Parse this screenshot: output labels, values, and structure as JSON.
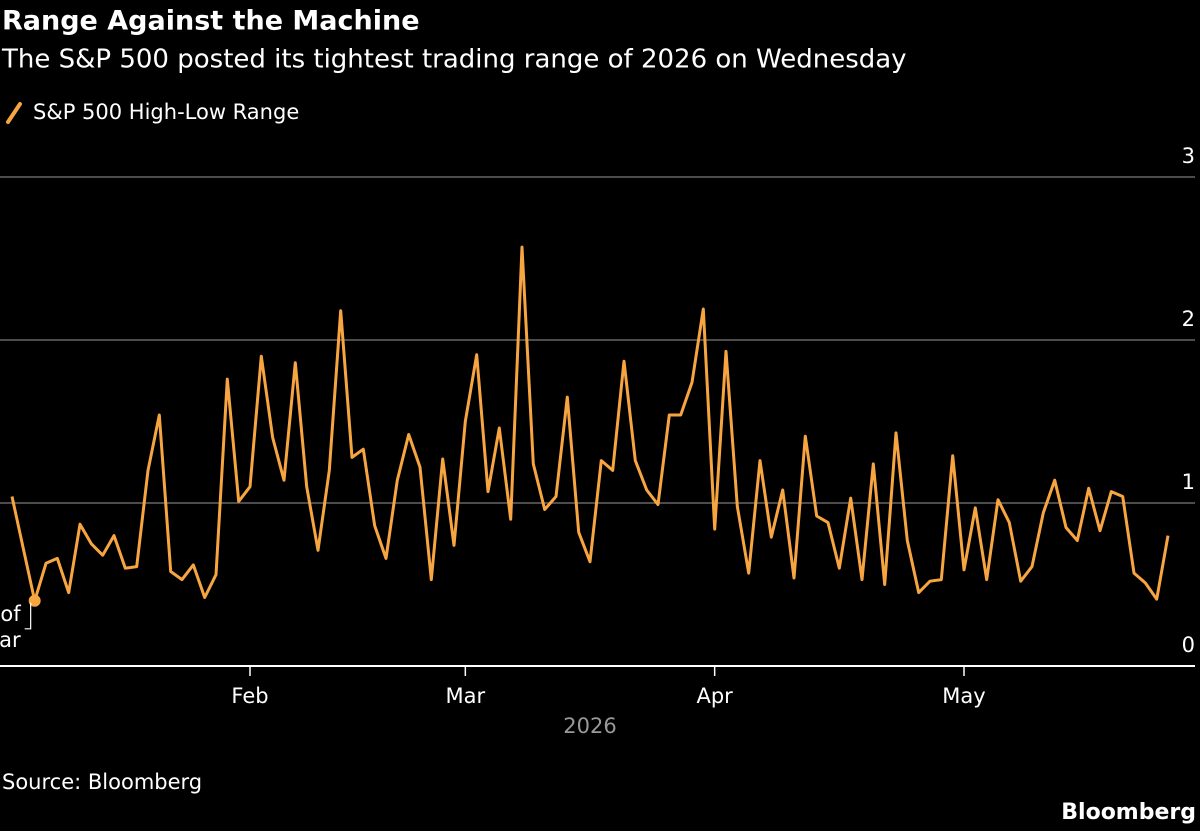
{
  "chart_data": {
    "type": "line",
    "title": "Range Against the Machine",
    "subtitle": "The S&P 500 posted its tightest trading range of 2026 on Wednesday",
    "x_label": "2026",
    "source": "Source: Bloomberg",
    "brand": "Bloomberg",
    "annotation": [
      "Tightest range of",
      "the year"
    ],
    "ylim": [
      0,
      3
    ],
    "yticks": [
      0,
      1,
      2,
      3
    ],
    "grid": true,
    "categories": [
      null,
      null,
      null,
      null,
      null,
      null,
      null,
      null,
      null,
      null,
      null,
      null,
      null,
      null,
      null,
      null,
      null,
      null,
      null,
      null,
      null,
      "Feb",
      null,
      null,
      null,
      null,
      null,
      null,
      null,
      null,
      null,
      null,
      null,
      null,
      null,
      null,
      null,
      null,
      null,
      null,
      "Mar",
      null,
      null,
      null,
      null,
      null,
      null,
      null,
      null,
      null,
      null,
      null,
      null,
      null,
      null,
      null,
      null,
      null,
      null,
      null,
      null,
      null,
      "Apr",
      null,
      null,
      null,
      null,
      null,
      null,
      null,
      null,
      null,
      null,
      null,
      null,
      null,
      null,
      null,
      null,
      null,
      null,
      null,
      null,
      null,
      "May",
      null,
      null,
      null,
      null,
      null,
      null,
      null,
      null,
      null,
      null,
      null,
      null,
      null,
      null,
      null,
      null,
      null,
      null
    ],
    "series": [
      {
        "name": "S&P 500 High-Low Range",
        "color": "#f7a541",
        "values": [
          1.04,
          0.72,
          0.4,
          0.63,
          0.66,
          0.45,
          0.87,
          0.75,
          0.68,
          0.8,
          0.6,
          0.61,
          1.2,
          1.54,
          0.58,
          0.53,
          0.62,
          0.42,
          0.56,
          1.76,
          1.01,
          1.1,
          1.9,
          1.4,
          1.14,
          1.86,
          1.1,
          0.71,
          1.2,
          2.18,
          1.28,
          1.33,
          0.86,
          0.66,
          1.14,
          1.42,
          1.22,
          0.53,
          1.27,
          0.74,
          1.5,
          1.91,
          1.07,
          1.46,
          0.9,
          2.57,
          1.24,
          0.96,
          1.04,
          1.65,
          0.82,
          0.64,
          1.26,
          1.2,
          1.87,
          1.26,
          1.08,
          0.99,
          1.54,
          1.54,
          1.74,
          2.19,
          0.84,
          1.93,
          0.98,
          0.57,
          1.26,
          0.79,
          1.08,
          0.54,
          1.41,
          0.92,
          0.88,
          0.6,
          1.03,
          0.53,
          1.24,
          0.5,
          1.43,
          0.77,
          0.45,
          0.52,
          0.53,
          1.29,
          0.59,
          0.97,
          0.53,
          1.02,
          0.88,
          0.52,
          0.61,
          0.94,
          1.14,
          0.85,
          0.77,
          1.09,
          0.83,
          1.07,
          1.04,
          0.57,
          0.51,
          0.41,
          0.8
        ]
      }
    ]
  }
}
